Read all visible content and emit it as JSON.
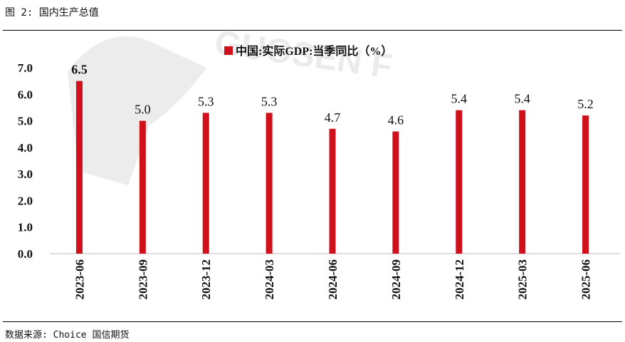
{
  "figure_title": "图 2: 国内生产总值",
  "source_note": "数据来源: Choice  国信期货",
  "watermark_text": "GUOSEN F",
  "colors": {
    "bar": "#d0101b",
    "watermark": "#c8c8c8"
  },
  "chart_data": {
    "type": "bar",
    "categories": [
      "2023-06",
      "2023-09",
      "2023-12",
      "2024-03",
      "2024-06",
      "2024-09",
      "2024-12",
      "2025-03",
      "2025-06"
    ],
    "series": [
      {
        "name": "中国:实际GDP:当季同比（%）",
        "values": [
          6.5,
          5.0,
          5.3,
          5.3,
          4.7,
          4.6,
          5.4,
          5.4,
          5.2
        ]
      }
    ],
    "data_labels": [
      "6.5",
      "5.0",
      "5.3",
      "5.3",
      "4.7",
      "4.6",
      "5.4",
      "5.4",
      "5.2"
    ],
    "yticks": [
      "0.0",
      "1.0",
      "2.0",
      "3.0",
      "4.0",
      "5.0",
      "6.0",
      "7.0"
    ],
    "ylim": [
      0,
      7
    ],
    "legend_position": "top-center",
    "grid": false
  }
}
